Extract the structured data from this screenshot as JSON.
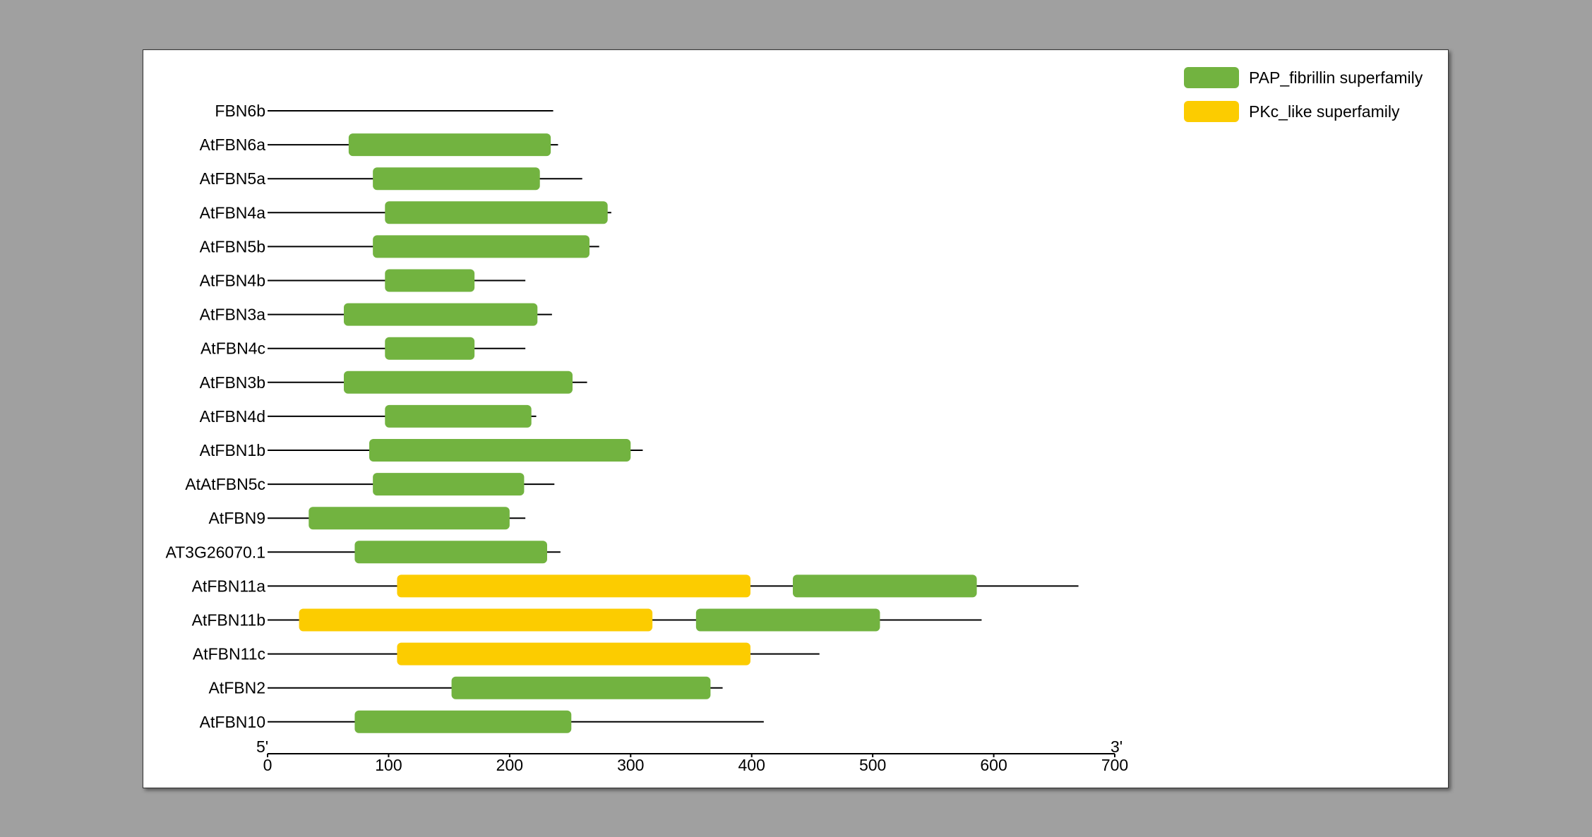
{
  "chart_data": {
    "type": "bar",
    "subtype": "protein-domain-architecture",
    "xlim": [
      0,
      700
    ],
    "xticks": [
      0,
      100,
      200,
      300,
      400,
      500,
      600,
      700
    ],
    "end_labels": {
      "left": "5'",
      "right": "3'"
    },
    "legend_position": "top-right",
    "legend": [
      {
        "key": "PAP",
        "label": "PAP_fibrillin superfamily",
        "color": "#72b340"
      },
      {
        "key": "PKC",
        "label": "PKc_like superfamily",
        "color": "#fccc00"
      }
    ],
    "proteins": [
      {
        "name": "FBN6b",
        "length": 236,
        "domains": []
      },
      {
        "name": "AtFBN6a",
        "length": 240,
        "domains": [
          {
            "type": "PAP",
            "start": 67,
            "end": 234
          }
        ]
      },
      {
        "name": "AtFBN5a",
        "length": 260,
        "domains": [
          {
            "type": "PAP",
            "start": 87,
            "end": 225
          }
        ]
      },
      {
        "name": "AtFBN4a",
        "length": 284,
        "domains": [
          {
            "type": "PAP",
            "start": 97,
            "end": 281
          }
        ]
      },
      {
        "name": "AtFBN5b",
        "length": 274,
        "domains": [
          {
            "type": "PAP",
            "start": 87,
            "end": 266
          }
        ]
      },
      {
        "name": "AtFBN4b",
        "length": 213,
        "domains": [
          {
            "type": "PAP",
            "start": 97,
            "end": 171
          }
        ]
      },
      {
        "name": "AtFBN3a",
        "length": 235,
        "domains": [
          {
            "type": "PAP",
            "start": 63,
            "end": 223
          }
        ]
      },
      {
        "name": "AtFBN4c",
        "length": 213,
        "domains": [
          {
            "type": "PAP",
            "start": 97,
            "end": 171
          }
        ]
      },
      {
        "name": "AtFBN3b",
        "length": 264,
        "domains": [
          {
            "type": "PAP",
            "start": 63,
            "end": 252
          }
        ]
      },
      {
        "name": "AtFBN4d",
        "length": 222,
        "domains": [
          {
            "type": "PAP",
            "start": 97,
            "end": 218
          }
        ]
      },
      {
        "name": "AtFBN1b",
        "length": 310,
        "domains": [
          {
            "type": "PAP",
            "start": 84,
            "end": 300
          }
        ]
      },
      {
        "name": "AtAtFBN5c",
        "length": 237,
        "domains": [
          {
            "type": "PAP",
            "start": 87,
            "end": 212
          }
        ]
      },
      {
        "name": "AtFBN9",
        "length": 213,
        "domains": [
          {
            "type": "PAP",
            "start": 34,
            "end": 200
          }
        ]
      },
      {
        "name": "AT3G26070.1",
        "length": 242,
        "domains": [
          {
            "type": "PAP",
            "start": 72,
            "end": 231
          }
        ]
      },
      {
        "name": "AtFBN11a",
        "length": 670,
        "domains": [
          {
            "type": "PKC",
            "start": 107,
            "end": 399
          },
          {
            "type": "PAP",
            "start": 434,
            "end": 586
          }
        ]
      },
      {
        "name": "AtFBN11b",
        "length": 590,
        "domains": [
          {
            "type": "PKC",
            "start": 26,
            "end": 318
          },
          {
            "type": "PAP",
            "start": 354,
            "end": 506
          }
        ]
      },
      {
        "name": "AtFBN11c",
        "length": 456,
        "domains": [
          {
            "type": "PKC",
            "start": 107,
            "end": 399
          }
        ]
      },
      {
        "name": "AtFBN2",
        "length": 376,
        "domains": [
          {
            "type": "PAP",
            "start": 152,
            "end": 366
          }
        ]
      },
      {
        "name": "AtFBN10",
        "length": 410,
        "domains": [
          {
            "type": "PAP",
            "start": 72,
            "end": 251
          }
        ]
      }
    ]
  }
}
